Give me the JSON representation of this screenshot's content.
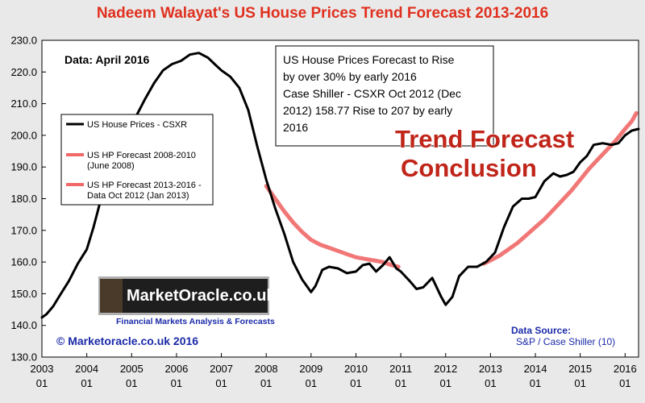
{
  "title": "Nadeem Walayat's US House Prices Trend  Forecast 2013-2016",
  "chart_data": {
    "type": "line",
    "ylim": [
      130,
      230
    ],
    "xlim": [
      2003.0,
      2016.3
    ],
    "y_ticks": [
      "230.0",
      "220.0",
      "210.0",
      "200.0",
      "190.0",
      "180.0",
      "170.0",
      "160.0",
      "150.0",
      "140.0",
      "130.0"
    ],
    "y_tick_values": [
      230,
      220,
      210,
      200,
      190,
      180,
      170,
      160,
      150,
      140,
      130
    ],
    "x_ticks": [
      {
        "year": "2003",
        "month": "01",
        "value": 2003
      },
      {
        "year": "2004",
        "month": "01",
        "value": 2004
      },
      {
        "year": "2005",
        "month": "01",
        "value": 2005
      },
      {
        "year": "2006",
        "month": "01",
        "value": 2006
      },
      {
        "year": "2007",
        "month": "01",
        "value": 2007
      },
      {
        "year": "2008",
        "month": "01",
        "value": 2008
      },
      {
        "year": "2009",
        "month": "01",
        "value": 2009
      },
      {
        "year": "2010",
        "month": "01",
        "value": 2010
      },
      {
        "year": "2011",
        "month": "01",
        "value": 2011
      },
      {
        "year": "2012",
        "month": "01",
        "value": 2012
      },
      {
        "year": "2013",
        "month": "01",
        "value": 2013
      },
      {
        "year": "2014",
        "month": "01",
        "value": 2014
      },
      {
        "year": "2015",
        "month": "01",
        "value": 2015
      },
      {
        "year": "2016",
        "month": "01",
        "value": 2016
      }
    ],
    "grid": false,
    "legend_position": "left",
    "series": [
      {
        "name": "US House Prices - CSXR",
        "color": "#000000",
        "x": [
          2003.0,
          2003.1,
          2003.25,
          2003.4,
          2003.6,
          2003.8,
          2004.0,
          2004.15,
          2004.3,
          2004.5,
          2004.7,
          2004.9,
          2005.1,
          2005.3,
          2005.5,
          2005.7,
          2005.9,
          2006.1,
          2006.3,
          2006.5,
          2006.7,
          2006.85,
          2007.0,
          2007.2,
          2007.4,
          2007.6,
          2007.8,
          2008.0,
          2008.2,
          2008.4,
          2008.6,
          2008.8,
          2009.0,
          2009.1,
          2009.25,
          2009.4,
          2009.6,
          2009.8,
          2010.0,
          2010.15,
          2010.3,
          2010.45,
          2010.6,
          2010.75,
          2010.9,
          2011.0,
          2011.2,
          2011.35,
          2011.5,
          2011.7,
          2011.9,
          2012.0,
          2012.15,
          2012.3,
          2012.5,
          2012.7,
          2012.9,
          2013.1,
          2013.3,
          2013.5,
          2013.7,
          2013.85,
          2014.0,
          2014.2,
          2014.4,
          2014.55,
          2014.7,
          2014.85,
          2015.0,
          2015.15,
          2015.3,
          2015.5,
          2015.7,
          2015.85,
          2016.0,
          2016.15,
          2016.3
        ],
        "y": [
          142.5,
          143.5,
          146.0,
          149.5,
          154.0,
          159.5,
          164.0,
          171.0,
          179.0,
          186.0,
          193.0,
          199.5,
          206.0,
          211.5,
          216.5,
          220.5,
          222.5,
          223.5,
          225.5,
          226.0,
          224.5,
          222.5,
          220.5,
          218.5,
          215.0,
          208.0,
          196.5,
          186.0,
          177.0,
          169.0,
          160.0,
          154.5,
          150.5,
          152.5,
          157.5,
          158.5,
          158.0,
          156.5,
          157.0,
          159.0,
          159.5,
          157.0,
          159.0,
          161.5,
          158.0,
          157.0,
          154.0,
          151.5,
          152.0,
          155.0,
          149.0,
          146.5,
          149.0,
          155.5,
          158.5,
          158.5,
          160.0,
          163.0,
          171.0,
          177.5,
          180.0,
          180.0,
          180.5,
          185.5,
          188.0,
          187.0,
          187.5,
          188.5,
          191.5,
          193.5,
          197.0,
          197.5,
          197.0,
          197.5,
          200.0,
          201.5,
          202.0
        ]
      },
      {
        "name": "US HP Forecast 2008-2010 (June 2008)",
        "color": "#f06868",
        "x": [
          2008.0,
          2008.2,
          2008.4,
          2008.6,
          2008.8,
          2009.0,
          2009.2,
          2009.4,
          2009.6,
          2009.8,
          2010.0,
          2010.2,
          2010.4,
          2010.6,
          2010.8,
          2010.95
        ],
        "y": [
          184.0,
          180.0,
          176.0,
          172.5,
          169.5,
          167.0,
          165.5,
          164.5,
          163.5,
          162.5,
          161.5,
          161.0,
          160.5,
          160.0,
          159.0,
          158.5
        ]
      },
      {
        "name": "US HP Forecast 2013-2016 - Data Oct 2012 (Jan 2013)",
        "color": "#f06868",
        "x": [
          2012.85,
          2013.0,
          2013.2,
          2013.4,
          2013.6,
          2013.8,
          2014.0,
          2014.2,
          2014.4,
          2014.6,
          2014.8,
          2015.0,
          2015.2,
          2015.4,
          2015.6,
          2015.8,
          2016.0,
          2016.15,
          2016.25
        ],
        "y": [
          159.5,
          160.5,
          162.0,
          164.0,
          166.0,
          168.5,
          171.0,
          173.5,
          176.5,
          179.5,
          182.5,
          186.0,
          189.5,
          192.5,
          195.5,
          198.5,
          202.0,
          204.5,
          207.0
        ]
      }
    ]
  },
  "legend": [
    {
      "label": "US House Prices - CSXR",
      "color": "#000000"
    },
    {
      "label": "US HP Forecast 2008-2010",
      "label2": "(June 2008)",
      "color": "#f06868"
    },
    {
      "label": "US HP Forecast 2013-2016 -",
      "label2": "Data Oct 2012 (Jan 2013)",
      "color": "#f06868"
    }
  ],
  "annotations": {
    "data_date": "Data:  April 2016",
    "note_lines": [
      "US House Prices Forecast to Rise",
      "by over 30% by early 2016",
      "Case Shiller - CSXR Oct 2012 (Dec",
      "2012) 158.77 Rise to 207 by early",
      "2016"
    ],
    "conclusion_line1": "Trend Forecast",
    "conclusion_line2": "Conclusion",
    "copyright": "© Marketoracle.co.uk 2016",
    "source_label": "Data Source:",
    "source_value": "S&P / Case Shiller (10)",
    "logo_text": "MarketOracle.co.uk",
    "logo_tagline": "Financial Markets Analysis & Forecasts"
  },
  "colors": {
    "title": "#e0301e",
    "conclusion": "#c0251a",
    "copyright": "#1a2aa8",
    "source": "#1a2aa8",
    "plot_bg": "#ffffff"
  }
}
